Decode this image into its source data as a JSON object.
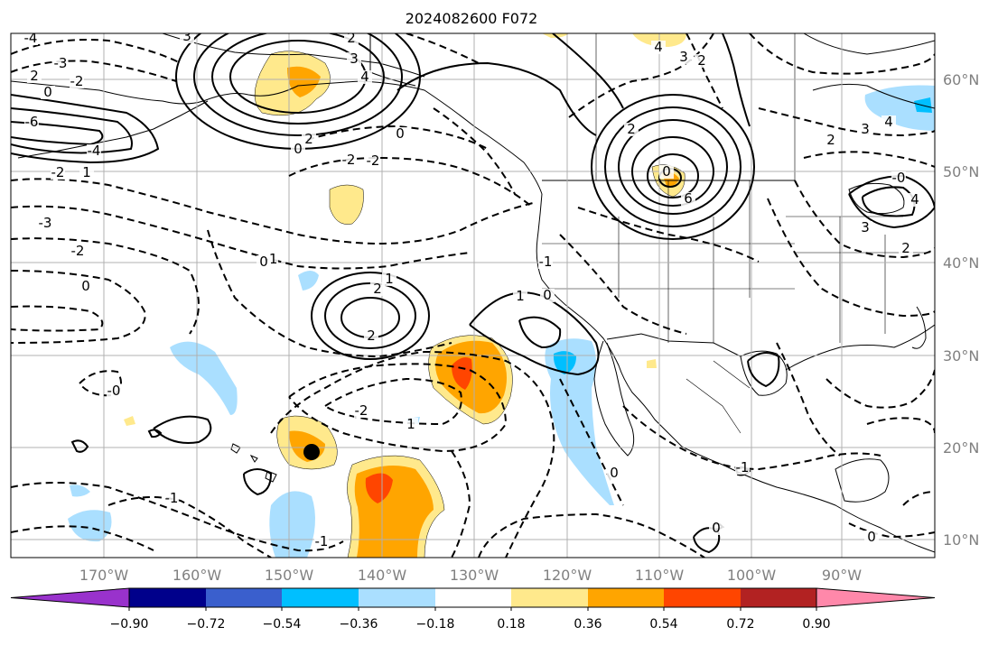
{
  "title": "2024082600 F072",
  "map": {
    "lat_labels": [
      "60°N",
      "50°N",
      "40°N",
      "30°N",
      "20°N",
      "10°N"
    ],
    "lon_labels": [
      "170°W",
      "160°W",
      "150°W",
      "140°W",
      "130°W",
      "120°W",
      "110°W",
      "100°W",
      "90°W"
    ],
    "contour_labels": [
      "-4",
      "3",
      "2",
      "3",
      "4",
      "2",
      "-3",
      "-2",
      "0",
      "-6",
      "-4",
      "-2",
      "1",
      "2",
      "0",
      "-2",
      "-2",
      "0",
      "-1",
      "0",
      "4",
      "3",
      "2",
      "2",
      "3",
      "4",
      "2",
      "6",
      "-3",
      "-2",
      "0",
      "-1",
      "1",
      "2",
      "2",
      "1",
      "0",
      "-0",
      "-2",
      "1",
      "-1",
      "-1",
      "0",
      "2",
      "4",
      "3",
      "-0",
      "-1",
      "0",
      "0",
      "0"
    ],
    "marker": "filled-circle",
    "colors": {
      "land_outline": "#000000",
      "grid": "#b0b0b0",
      "fill_positive_low": "#ffe98c",
      "fill_positive_mid": "#ffa500",
      "fill_positive_high": "#ff4500",
      "fill_negative_low": "#aadfff",
      "fill_negative_mid": "#00bfff"
    }
  },
  "colorbar": {
    "ticks": [
      "−0.90",
      "−0.72",
      "−0.54",
      "−0.36",
      "−0.18",
      "0.18",
      "0.36",
      "0.54",
      "0.72",
      "0.90"
    ],
    "colors": [
      "#9932cc",
      "#00008b",
      "#3a5fcd",
      "#00bfff",
      "#aadfff",
      "#ffffff",
      "#ffe98c",
      "#ffa500",
      "#ff4500",
      "#b22222",
      "#ff88aa"
    ]
  }
}
